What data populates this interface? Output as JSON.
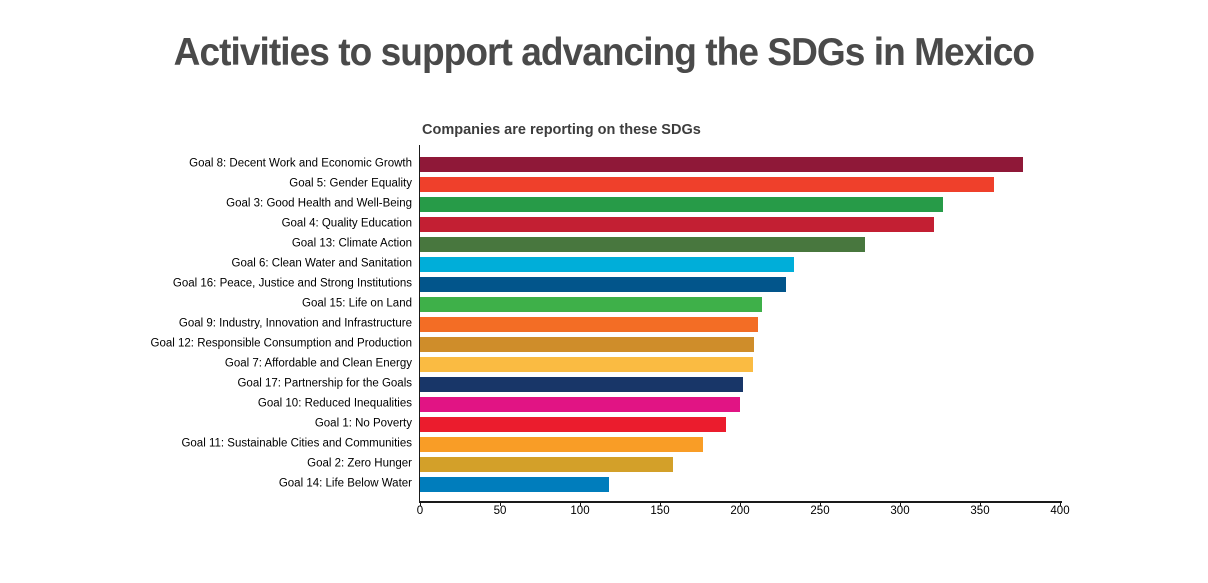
{
  "page": {
    "title": "Activities to support advancing the SDGs in Mexico"
  },
  "chart_data": {
    "type": "bar",
    "orientation": "horizontal",
    "title": "Companies are reporting on these SDGs",
    "xlabel": "",
    "ylabel": "",
    "xlim": [
      0,
      400
    ],
    "xticks": [
      0,
      50,
      100,
      150,
      200,
      250,
      300,
      350,
      400
    ],
    "grid": false,
    "legend": "none",
    "categories": [
      "Goal 8: Decent Work and Economic Growth",
      "Goal 5: Gender Equality",
      "Goal 3: Good Health and Well-Being",
      "Goal 4: Quality Education",
      "Goal 13: Climate Action",
      "Goal 6: Clean Water and Sanitation",
      "Goal 16: Peace, Justice and Strong Institutions",
      "Goal 15: Life on Land",
      "Goal 9: Industry, Innovation and Infrastructure",
      "Goal 12: Responsible Consumption and Production",
      "Goal 7: Affordable and Clean Energy",
      "Goal 17: Partnership for the Goals",
      "Goal 10: Reduced Inequalities",
      "Goal 1: No Poverty",
      "Goal 11: Sustainable Cities and Communities",
      "Goal 2: Zero Hunger",
      "Goal 14: Life Below Water"
    ],
    "values": [
      377,
      359,
      327,
      321,
      278,
      234,
      229,
      214,
      211,
      209,
      208,
      202,
      200,
      191,
      177,
      158,
      118
    ],
    "colors": [
      "#8F1838",
      "#EF402B",
      "#279B48",
      "#C31F33",
      "#48773E",
      "#00AED9",
      "#02558B",
      "#3EB049",
      "#F36D25",
      "#CF8D2A",
      "#FABB42",
      "#183668",
      "#E11484",
      "#EB1C2D",
      "#F99D26",
      "#D3A029",
      "#007DBC"
    ]
  },
  "style": {
    "background": "#ffffff",
    "title_color": "#4a4a4a",
    "subtitle_color": "#3d3d3d",
    "axis_color": "#1a1a1a",
    "label_color": "#000000"
  }
}
